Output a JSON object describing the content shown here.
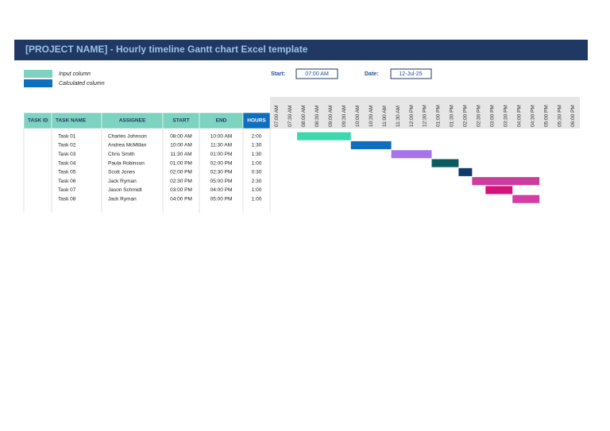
{
  "header": {
    "title": "[PROJECT NAME] - Hourly timeline Gantt chart Excel template"
  },
  "legend": [
    {
      "label": "Input column",
      "color": "#7dd3c0"
    },
    {
      "label": "Calculated column",
      "color": "#0f6fbf"
    }
  ],
  "start": {
    "label": "Start:",
    "value": "07:00 AM"
  },
  "date": {
    "label": "Date:",
    "value": "12-Jul-25"
  },
  "table": {
    "columns": [
      "TASK ID",
      "TASK NAME",
      "ASSIGNEE",
      "START",
      "END",
      "HOURS"
    ],
    "rows": [
      {
        "name": "Task 01",
        "assignee": "Charles Johnson",
        "start": "08:00 AM",
        "end": "10:00 AM",
        "hours": "2:00",
        "color": "#3dd9ad"
      },
      {
        "name": "Task 02",
        "assignee": "Andrea McMillan",
        "start": "10:00 AM",
        "end": "11:30 AM",
        "hours": "1:30",
        "color": "#0f6fbf"
      },
      {
        "name": "Task 03",
        "assignee": "Chris Smith",
        "start": "11:30 AM",
        "end": "01:00 PM",
        "hours": "1:30",
        "color": "#a673e8"
      },
      {
        "name": "Task 04",
        "assignee": "Paula Robinson",
        "start": "01:00 PM",
        "end": "02:00 PM",
        "hours": "1:00",
        "color": "#0b5a5e"
      },
      {
        "name": "Task 05",
        "assignee": "Scott Jones",
        "start": "02:00 PM",
        "end": "02:30 PM",
        "hours": "0:30",
        "color": "#0d3a6b"
      },
      {
        "name": "Task 06",
        "assignee": "Jack Ryman",
        "start": "02:30 PM",
        "end": "05:00 PM",
        "hours": "2:30",
        "color": "#cc3d9e"
      },
      {
        "name": "Task 07",
        "assignee": "Jason Schmidt",
        "start": "03:00 PM",
        "end": "04:00 PM",
        "hours": "1:00",
        "color": "#d4127a"
      },
      {
        "name": "Task 08",
        "assignee": "Jack Ryman",
        "start": "04:00 PM",
        "end": "05:00 PM",
        "hours": "1:00",
        "color": "#d63ca6"
      }
    ]
  },
  "timeline": [
    "07:00 AM",
    "07:30 AM",
    "08:00 AM",
    "08:30 AM",
    "09:00 AM",
    "09:30 AM",
    "10:00 AM",
    "10:30 AM",
    "11:00 AM",
    "11:30 AM",
    "12:00 PM",
    "12:30 PM",
    "01:00 PM",
    "01:30 PM",
    "02:00 PM",
    "02:30 PM",
    "03:00 PM",
    "03:30 PM",
    "04:00 PM",
    "04:30 PM",
    "05:00 PM",
    "05:30 PM",
    "06:00 PM"
  ]
}
